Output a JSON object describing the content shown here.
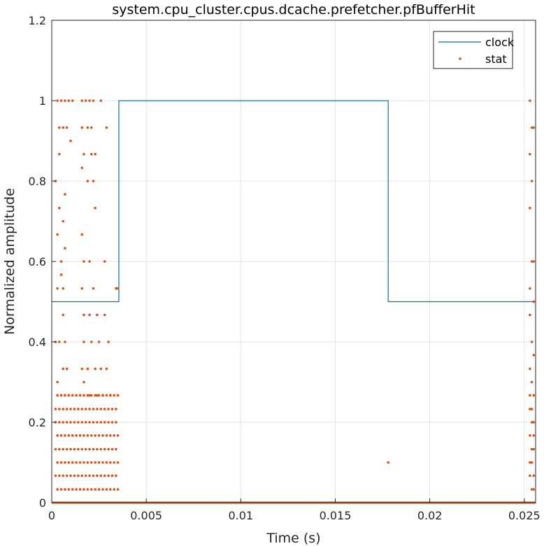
{
  "chart_data": {
    "type": "line",
    "title": "system.cpu_cluster.cpus.dcache.prefetcher.pfBufferHit",
    "xlabel": "Time (s)",
    "ylabel": "Normalized amplitude",
    "xlim": [
      0,
      0.0256
    ],
    "ylim": [
      0,
      1.2
    ],
    "x_ticks": [
      0,
      0.005,
      0.01,
      0.015,
      0.02,
      0.025
    ],
    "x_tick_labels": [
      "0",
      "0.005",
      "0.01",
      "0.015",
      "0.02",
      "0.025"
    ],
    "y_ticks": [
      0,
      0.2,
      0.4,
      0.6,
      0.8,
      1.0,
      1.2
    ],
    "y_tick_labels": [
      "0",
      "0.2",
      "0.4",
      "0.6",
      "0.8",
      "1",
      "1.2"
    ],
    "grid": true,
    "legend_position": "top-right",
    "series": [
      {
        "name": "clock",
        "kind": "line",
        "color": "#0072BD",
        "x": [
          0,
          0.00355,
          0.00355,
          0.0178,
          0.0178,
          0.0256
        ],
        "y": [
          0.5,
          0.5,
          1.0,
          1.0,
          0.5,
          0.5
        ]
      },
      {
        "name": "stat",
        "kind": "scatter",
        "color": "#D95319",
        "x": [
          0.0003,
          0.0005,
          0.0007,
          0.0009,
          0.0011,
          0.0016,
          0.0018,
          0.002,
          0.0022,
          0.0026,
          0.0004,
          0.0006,
          0.0008,
          0.0016,
          0.0019,
          0.0021,
          0.0029,
          0.001,
          0.0004,
          0.0017,
          0.0021,
          0.0023,
          0.0002,
          0.0016,
          0.0019,
          0.0022,
          0.0007,
          0.0004,
          0.0006,
          0.0023,
          0.0003,
          0.0016,
          0.0007,
          0.0005,
          0.0005,
          0.0017,
          0.002,
          0.0028,
          0.0006,
          0.0003,
          0.0016,
          0.0022,
          0.0034,
          0.0035,
          0.0006,
          0.0017,
          0.002,
          0.0024,
          0.0004,
          0.0002,
          0.0007,
          0.0017,
          0.0021,
          0.0025,
          0.0028,
          0.003,
          0.0006,
          0.0008,
          0.0016,
          0.0019,
          0.0023,
          0.0026,
          0.0029,
          0.0003,
          0.0007,
          0.0009,
          0.0015,
          0.002,
          0.0024,
          0.0027,
          0.0031,
          0.0017,
          0.0002,
          0.0004,
          0.0006,
          0.0008,
          0.001,
          0.0012,
          0.0014,
          0.0016,
          0.0018,
          0.002,
          0.0022,
          0.0024,
          0.0026,
          0.0028,
          0.003,
          0.0032,
          0.0034,
          0.0003,
          0.0005,
          0.0007,
          0.0009,
          0.0011,
          0.0013,
          0.0015,
          0.0017,
          0.0019,
          0.0021,
          0.0023,
          0.0025,
          0.0027,
          0.0029,
          0.0031,
          0.0033,
          0.0035,
          0.0002,
          0.0004,
          0.0006,
          0.0008,
          0.001,
          0.0012,
          0.0014,
          0.0016,
          0.0018,
          0.002,
          0.0022,
          0.0024,
          0.0026,
          0.0028,
          0.003,
          0.0032,
          0.0034,
          0.0003,
          0.0005,
          0.0007,
          0.0009,
          0.0011,
          0.0013,
          0.0015,
          0.0017,
          0.0019,
          0.0021,
          0.0023,
          0.0025,
          0.0027,
          0.0029,
          0.0031,
          0.0033,
          0.0035,
          0.0002,
          0.0004,
          0.0006,
          0.0008,
          0.001,
          0.0012,
          0.0014,
          0.0016,
          0.0018,
          0.002,
          0.0022,
          0.0024,
          0.0026,
          0.0028,
          0.003,
          0.0032,
          0.0034,
          0.0003,
          0.0005,
          0.0007,
          0.0009,
          0.0011,
          0.0013,
          0.0015,
          0.0017,
          0.0019,
          0.0021,
          0.0023,
          0.0025,
          0.0027,
          0.0029,
          0.0031,
          0.0033,
          0.0035,
          0.0002,
          0.0004,
          0.0006,
          0.0008,
          0.001,
          0.0012,
          0.0014,
          0.0016,
          0.0018,
          0.002,
          0.0022,
          0.0024,
          0.0026,
          0.0028,
          0.003,
          0.0032,
          0.0034,
          0.0003,
          0.0005,
          0.0007,
          0.0009,
          0.0011,
          0.0013,
          0.0015,
          0.0017,
          0.0019,
          0.0021,
          0.0023,
          0.0025,
          0.0027,
          0.0029,
          0.0031,
          0.0033,
          0.0035,
          0.0178,
          0.0253,
          0.0254,
          0.0255,
          0.0253,
          0.0254,
          0.0253,
          0.0255,
          0.0254,
          0.0253,
          0.0255,
          0.0253,
          0.0254,
          0.0255,
          0.0253,
          0.0254,
          0.0255,
          0.0253,
          0.0254,
          0.0255,
          0.0253,
          0.0254,
          0.0255,
          0.0253,
          0.0254,
          0.0255,
          0.0253,
          0.0254,
          0.0255,
          0.0253,
          0.0254,
          0.0255
        ],
        "y": [
          1.0,
          1.0,
          1.0,
          1.0,
          1.0,
          1.0,
          1.0,
          1.0,
          1.0,
          1.0,
          0.933,
          0.933,
          0.933,
          0.933,
          0.933,
          0.933,
          0.933,
          0.9,
          0.867,
          0.867,
          0.867,
          0.867,
          0.8,
          0.833,
          0.8,
          0.8,
          0.767,
          0.733,
          0.7,
          0.733,
          0.667,
          0.667,
          0.633,
          0.6,
          0.567,
          0.6,
          0.6,
          0.6,
          0.533,
          0.533,
          0.533,
          0.533,
          0.533,
          0.533,
          0.467,
          0.467,
          0.467,
          0.467,
          0.4,
          0.4,
          0.4,
          0.4,
          0.4,
          0.4,
          0.467,
          0.4,
          0.333,
          0.333,
          0.333,
          0.333,
          0.333,
          0.333,
          0.333,
          0.3,
          0.267,
          0.267,
          0.267,
          0.267,
          0.267,
          0.267,
          0.267,
          0.3,
          0.2,
          0.2,
          0.2,
          0.2,
          0.2,
          0.2,
          0.2,
          0.2,
          0.2,
          0.2,
          0.2,
          0.2,
          0.2,
          0.2,
          0.2,
          0.2,
          0.2,
          0.167,
          0.167,
          0.167,
          0.167,
          0.167,
          0.167,
          0.167,
          0.167,
          0.167,
          0.167,
          0.167,
          0.167,
          0.167,
          0.167,
          0.167,
          0.167,
          0.167,
          0.133,
          0.133,
          0.133,
          0.133,
          0.133,
          0.133,
          0.133,
          0.133,
          0.133,
          0.133,
          0.133,
          0.133,
          0.133,
          0.133,
          0.133,
          0.133,
          0.133,
          0.1,
          0.1,
          0.1,
          0.1,
          0.1,
          0.1,
          0.1,
          0.1,
          0.1,
          0.1,
          0.1,
          0.1,
          0.1,
          0.1,
          0.1,
          0.1,
          0.1,
          0.067,
          0.067,
          0.067,
          0.067,
          0.067,
          0.067,
          0.067,
          0.067,
          0.067,
          0.067,
          0.067,
          0.067,
          0.067,
          0.067,
          0.067,
          0.067,
          0.067,
          0.033,
          0.033,
          0.033,
          0.033,
          0.033,
          0.033,
          0.033,
          0.033,
          0.033,
          0.033,
          0.033,
          0.033,
          0.033,
          0.033,
          0.033,
          0.033,
          0.033,
          0.233,
          0.233,
          0.233,
          0.233,
          0.233,
          0.233,
          0.233,
          0.233,
          0.233,
          0.233,
          0.233,
          0.233,
          0.233,
          0.233,
          0.233,
          0.233,
          0.233,
          0.267,
          0.267,
          0.267,
          0.267,
          0.267,
          0.267,
          0.267,
          0.267,
          0.267,
          0.267,
          0.267,
          0.267,
          0.267,
          0.267,
          0.267,
          0.267,
          0.267,
          0.1,
          1.0,
          0.933,
          0.933,
          0.867,
          0.8,
          0.733,
          0.6,
          0.6,
          0.533,
          0.5,
          0.467,
          0.4,
          0.367,
          0.333,
          0.3,
          0.267,
          0.233,
          0.2,
          0.2,
          0.167,
          0.133,
          0.133,
          0.1,
          0.1,
          0.067,
          0.067,
          0.033,
          0.033,
          0.267,
          0.233,
          0.167
        ],
        "baseline_y": 0,
        "baseline_note": ""
      }
    ]
  }
}
